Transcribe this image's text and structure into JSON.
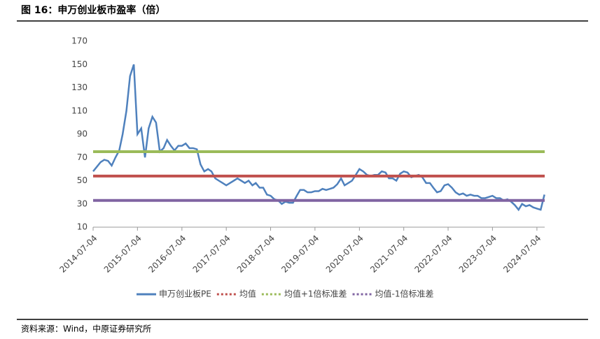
{
  "header": {
    "title": "图 16：申万创业板市盈率（倍）"
  },
  "chart_data": {
    "type": "line",
    "x": [
      "2014-07-04",
      "2014-08-04",
      "2014-09-04",
      "2014-10-04",
      "2014-11-04",
      "2014-12-04",
      "2015-01-04",
      "2015-02-04",
      "2015-03-04",
      "2015-04-04",
      "2015-05-04",
      "2015-06-04",
      "2015-07-04",
      "2015-08-04",
      "2015-09-04",
      "2015-10-04",
      "2015-11-04",
      "2015-12-04",
      "2016-01-04",
      "2016-02-04",
      "2016-03-04",
      "2016-04-04",
      "2016-05-04",
      "2016-06-04",
      "2016-07-04",
      "2016-08-04",
      "2016-09-04",
      "2016-10-04",
      "2016-11-04",
      "2016-12-04",
      "2017-01-04",
      "2017-02-04",
      "2017-03-04",
      "2017-04-04",
      "2017-05-04",
      "2017-06-04",
      "2017-07-04",
      "2017-08-04",
      "2017-09-04",
      "2017-10-04",
      "2017-11-04",
      "2017-12-04",
      "2018-01-04",
      "2018-02-04",
      "2018-03-04",
      "2018-04-04",
      "2018-05-04",
      "2018-06-04",
      "2018-07-04",
      "2018-08-04",
      "2018-09-04",
      "2018-10-04",
      "2018-11-04",
      "2018-12-04",
      "2019-01-04",
      "2019-02-04",
      "2019-03-04",
      "2019-04-04",
      "2019-05-04",
      "2019-06-04",
      "2019-07-04",
      "2019-08-04",
      "2019-09-04",
      "2019-10-04",
      "2019-11-04",
      "2019-12-04",
      "2020-01-04",
      "2020-02-04",
      "2020-03-04",
      "2020-04-04",
      "2020-05-04",
      "2020-06-04",
      "2020-07-04",
      "2020-08-04",
      "2020-09-04",
      "2020-10-04",
      "2020-11-04",
      "2020-12-04",
      "2021-01-04",
      "2021-02-04",
      "2021-03-04",
      "2021-04-04",
      "2021-05-04",
      "2021-06-04",
      "2021-07-04",
      "2021-08-04",
      "2021-09-04",
      "2021-10-04",
      "2021-11-04",
      "2021-12-04",
      "2022-01-04",
      "2022-02-04",
      "2022-03-04",
      "2022-04-04",
      "2022-05-04",
      "2022-06-04",
      "2022-07-04",
      "2022-08-04",
      "2022-09-04",
      "2022-10-04",
      "2022-11-04",
      "2022-12-04",
      "2023-01-04",
      "2023-02-04",
      "2023-03-04",
      "2023-04-04",
      "2023-05-04",
      "2023-06-04",
      "2023-07-04",
      "2023-08-04",
      "2023-09-04",
      "2023-10-04",
      "2023-11-04",
      "2023-12-04",
      "2024-01-04",
      "2024-02-04",
      "2024-03-04",
      "2024-04-04",
      "2024-05-04",
      "2024-06-04",
      "2024-07-04",
      "2024-08-04",
      "2024-09-04"
    ],
    "series": [
      {
        "name": "申万创业板PE",
        "color": "#4f81bd",
        "values": [
          58,
          62,
          66,
          68,
          67,
          63,
          70,
          76,
          90,
          110,
          140,
          150,
          90,
          95,
          70,
          95,
          105,
          100,
          75,
          78,
          85,
          80,
          76,
          80,
          80,
          82,
          78,
          78,
          77,
          64,
          58,
          60,
          58,
          52,
          50,
          48,
          46,
          48,
          50,
          52,
          50,
          48,
          50,
          46,
          48,
          44,
          44,
          38,
          37,
          34,
          33,
          30,
          32,
          31,
          31,
          37,
          42,
          42,
          40,
          40,
          41,
          41,
          43,
          42,
          43,
          44,
          47,
          52,
          46,
          48,
          50,
          55,
          60,
          58,
          55,
          54,
          55,
          55,
          58,
          57,
          52,
          52,
          50,
          56,
          58,
          57,
          53,
          54,
          55,
          53,
          48,
          48,
          44,
          40,
          41,
          46,
          47,
          44,
          40,
          38,
          39,
          37,
          38,
          37,
          37,
          35,
          35,
          36,
          37,
          35,
          35,
          33,
          34,
          32,
          29,
          25,
          30,
          28,
          29,
          27,
          26,
          25,
          38
        ]
      },
      {
        "name": "均值",
        "color": "#c0504d",
        "value": 54
      },
      {
        "name": "均值+1倍标准差",
        "color": "#9bbb59",
        "value": 75
      },
      {
        "name": "均值-1倍标准差",
        "color": "#8064a2",
        "value": 33
      }
    ],
    "xlim": [
      "2014-07-04",
      "2024-09-06"
    ],
    "xticks": [
      "2014-07-04",
      "2015-07-04",
      "2016-07-04",
      "2017-07-04",
      "2018-07-04",
      "2019-07-04",
      "2020-07-04",
      "2021-07-04",
      "2022-07-04",
      "2023-07-04",
      "2024-07-04"
    ],
    "ylim": [
      10,
      170
    ],
    "yticks": [
      10,
      30,
      50,
      70,
      90,
      110,
      130,
      150,
      170
    ],
    "legend": "bottom"
  },
  "footer": {
    "source": "资料来源：Wind，中原证券研究所"
  }
}
